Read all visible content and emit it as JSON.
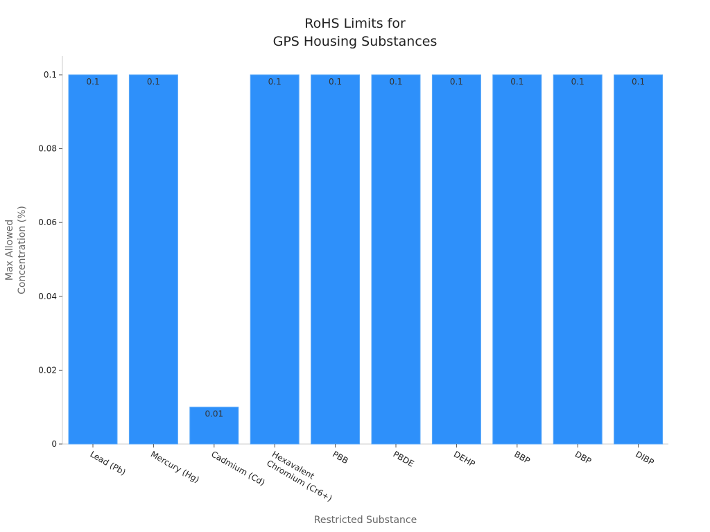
{
  "chart_data": {
    "type": "bar",
    "title": "RoHS Limits for\nGPS Housing Substances",
    "xlabel": "Restricted Substance",
    "ylabel": "Max Allowed\nConcentration (%)",
    "categories": [
      "Lead (Pb)",
      "Mercury (Hg)",
      "Cadmium (Cd)",
      "Hexavalent\nChromium (Cr6+)",
      "PBB",
      "PBDE",
      "DEHP",
      "BBP",
      "DBP",
      "DIBP"
    ],
    "values": [
      0.1,
      0.1,
      0.01,
      0.1,
      0.1,
      0.1,
      0.1,
      0.1,
      0.1,
      0.1
    ],
    "data_labels": [
      "0.1",
      "0.1",
      "0.01",
      "0.1",
      "0.1",
      "0.1",
      "0.1",
      "0.1",
      "0.1",
      "0.1"
    ],
    "ylim": [
      0,
      0.1
    ],
    "yticks": [
      0,
      0.02,
      0.04,
      0.06,
      0.08,
      0.1
    ],
    "ytick_labels": [
      "0",
      "0.02",
      "0.04",
      "0.06",
      "0.08",
      "0.1"
    ],
    "bar_color": "#2e90fa",
    "bar_edge_color": "#5aa8f8",
    "grid": false,
    "legend": "none"
  }
}
